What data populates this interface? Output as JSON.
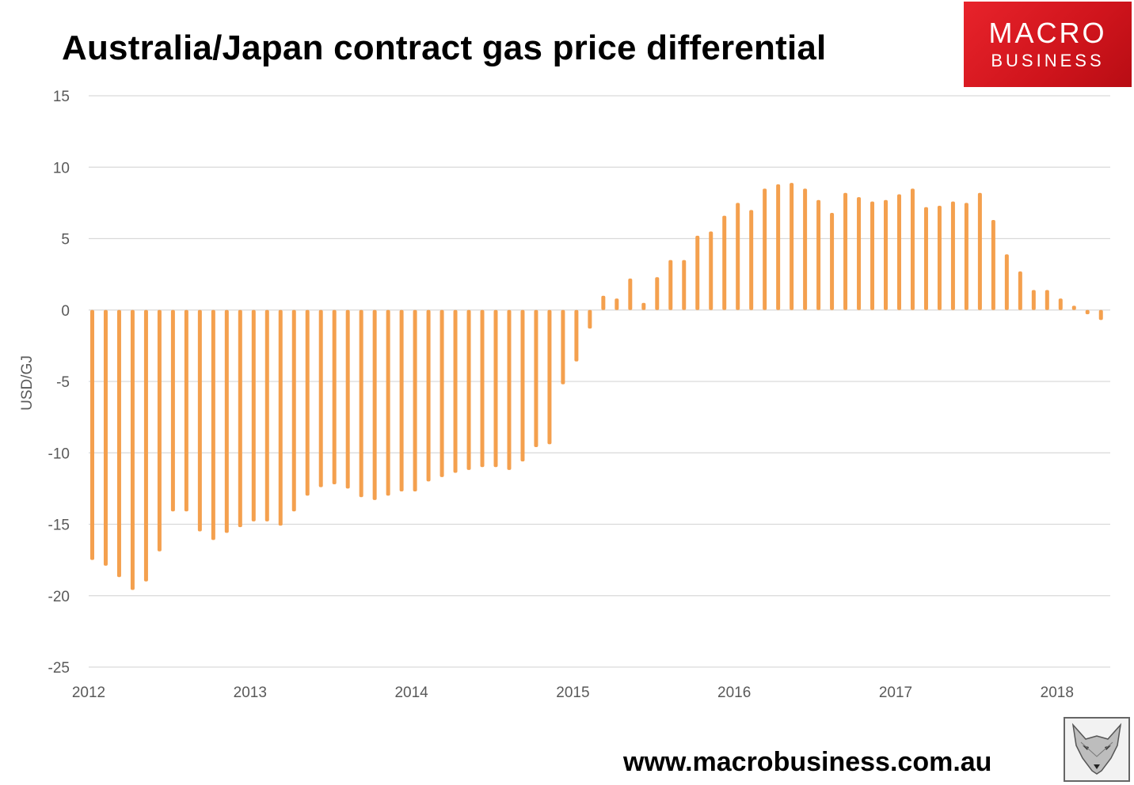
{
  "header": {
    "title": "Australia/Japan contract gas price differential",
    "logo_top": "MACRO",
    "logo_bottom": "BUSINESS"
  },
  "footer": {
    "url": "www.macrobusiness.com.au"
  },
  "colors": {
    "bar": "#F4A04E",
    "grid": "#D9D9D9",
    "logo_red": "#D9161E"
  },
  "icons": {
    "fox": "fox-logo-icon"
  },
  "chart_data": {
    "type": "bar",
    "title": "Australia/Japan contract gas price differential",
    "xlabel": "",
    "ylabel": "USD/GJ",
    "ylim": [
      -25,
      15
    ],
    "yticks": [
      15,
      10,
      5,
      0,
      -5,
      -10,
      -15,
      -20,
      -25
    ],
    "xticks": [
      "2012",
      "2013",
      "2014",
      "2015",
      "2016",
      "2017",
      "2018"
    ],
    "x_start": "2012-01",
    "frequency": "monthly",
    "grid": true,
    "series": [
      {
        "name": "Australia/Japan contract gas price differential",
        "values": [
          -17.5,
          -17.9,
          -18.7,
          -19.6,
          -19.0,
          -16.9,
          -14.1,
          -14.1,
          -15.5,
          -16.1,
          -15.6,
          -15.2,
          -14.8,
          -14.8,
          -15.1,
          -14.1,
          -13.0,
          -12.4,
          -12.2,
          -12.5,
          -13.1,
          -13.3,
          -13.0,
          -12.7,
          -12.7,
          -12.0,
          -11.7,
          -11.4,
          -11.2,
          -11.0,
          -11.0,
          -11.2,
          -10.6,
          -9.6,
          -9.4,
          -5.2,
          -3.6,
          -1.3,
          1.0,
          0.8,
          2.2,
          0.5,
          2.3,
          3.5,
          3.5,
          5.2,
          5.5,
          6.6,
          7.5,
          7.0,
          8.5,
          8.8,
          8.9,
          8.5,
          7.7,
          6.8,
          8.2,
          7.9,
          7.6,
          7.7,
          8.1,
          8.5,
          7.2,
          7.3,
          7.6,
          7.5,
          8.2,
          6.3,
          3.9,
          2.7,
          1.4,
          1.4,
          0.8,
          0.3,
          -0.3,
          -0.7
        ]
      }
    ]
  }
}
